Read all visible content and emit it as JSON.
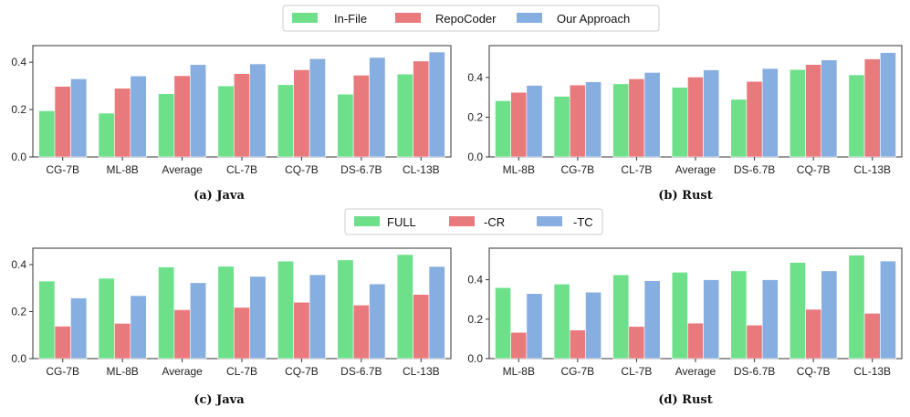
{
  "colors": {
    "s0": "#6ee08a",
    "s1": "#e8797d",
    "s2": "#86aee0"
  },
  "legends": [
    {
      "entries": [
        "In-File",
        "RepoCoder",
        "Our Approach"
      ]
    },
    {
      "entries": [
        "FULL",
        "-CR",
        "-TC"
      ]
    }
  ],
  "chart_data": [
    {
      "type": "bar",
      "caption": "(a) Java",
      "categories": [
        "CG-7B",
        "ML-8B",
        "Average",
        "CL-7B",
        "CQ-7B",
        "DS-6.7B",
        "CL-13B"
      ],
      "series": [
        {
          "name": "In-File",
          "values": [
            0.195,
            0.185,
            0.267,
            0.3,
            0.305,
            0.265,
            0.35
          ]
        },
        {
          "name": "RepoCoder",
          "values": [
            0.298,
            0.29,
            0.343,
            0.352,
            0.368,
            0.345,
            0.405
          ]
        },
        {
          "name": "Our Approach",
          "values": [
            0.33,
            0.342,
            0.39,
            0.393,
            0.415,
            0.42,
            0.443
          ]
        }
      ],
      "ylim": [
        0,
        0.47
      ],
      "yticks": [
        0.0,
        0.2,
        0.4
      ],
      "ytick_labels": [
        "0.0",
        "0.2",
        "0.4"
      ],
      "xlabel": "",
      "ylabel": ""
    },
    {
      "type": "bar",
      "caption": "(b) Rust",
      "categories": [
        "ML-8B",
        "CG-7B",
        "CL-7B",
        "Average",
        "DS-6.7B",
        "CQ-7B",
        "CL-13B"
      ],
      "series": [
        {
          "name": "In-File",
          "values": [
            0.283,
            0.305,
            0.368,
            0.35,
            0.29,
            0.44,
            0.413
          ]
        },
        {
          "name": "RepoCoder",
          "values": [
            0.325,
            0.362,
            0.393,
            0.402,
            0.38,
            0.465,
            0.493
          ]
        },
        {
          "name": "Our Approach",
          "values": [
            0.36,
            0.378,
            0.425,
            0.438,
            0.445,
            0.488,
            0.525
          ]
        }
      ],
      "ylim": [
        0,
        0.56
      ],
      "yticks": [
        0.0,
        0.2,
        0.4
      ],
      "ytick_labels": [
        "0.0",
        "0.2",
        "0.4"
      ],
      "xlabel": "",
      "ylabel": ""
    },
    {
      "type": "bar",
      "caption": "(c) Java",
      "categories": [
        "CG-7B",
        "ML-8B",
        "Average",
        "CL-7B",
        "CQ-7B",
        "DS-6.7B",
        "CL-13B"
      ],
      "series": [
        {
          "name": "FULL",
          "values": [
            0.33,
            0.342,
            0.39,
            0.393,
            0.415,
            0.42,
            0.443
          ]
        },
        {
          "name": "-CR",
          "values": [
            0.138,
            0.15,
            0.208,
            0.218,
            0.24,
            0.228,
            0.273
          ]
        },
        {
          "name": "-TC",
          "values": [
            0.258,
            0.268,
            0.323,
            0.35,
            0.357,
            0.318,
            0.392
          ]
        }
      ],
      "ylim": [
        0,
        0.47
      ],
      "yticks": [
        0.0,
        0.2,
        0.4
      ],
      "ytick_labels": [
        "0.0",
        "0.2",
        "0.4"
      ],
      "xlabel": "",
      "ylabel": ""
    },
    {
      "type": "bar",
      "caption": "(d) Rust",
      "categories": [
        "ML-8B",
        "CG-7B",
        "CL-7B",
        "Average",
        "DS-6.7B",
        "CQ-7B",
        "CL-13B"
      ],
      "series": [
        {
          "name": "FULL",
          "values": [
            0.36,
            0.378,
            0.425,
            0.438,
            0.445,
            0.488,
            0.525
          ]
        },
        {
          "name": "-CR",
          "values": [
            0.133,
            0.145,
            0.163,
            0.18,
            0.17,
            0.25,
            0.23
          ]
        },
        {
          "name": "-TC",
          "values": [
            0.33,
            0.337,
            0.395,
            0.4,
            0.4,
            0.445,
            0.495
          ]
        }
      ],
      "ylim": [
        0,
        0.56
      ],
      "yticks": [
        0.0,
        0.2,
        0.4
      ],
      "ytick_labels": [
        "0.0",
        "0.2",
        "0.4"
      ],
      "xlabel": "",
      "ylabel": ""
    }
  ]
}
